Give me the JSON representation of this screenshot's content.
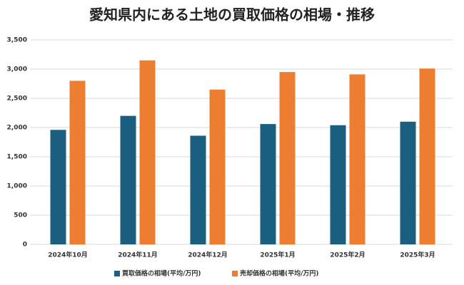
{
  "chart_data": {
    "type": "bar",
    "title": "愛知県内にある土地の買取価格の相場・推移",
    "categories": [
      "2024年10月",
      "2024年11月",
      "2024年12月",
      "2025年1月",
      "2025年2月",
      "2025年3月"
    ],
    "series": [
      {
        "name": "買取価格の相場(平均/万円)",
        "color": "#1b5f80",
        "values": [
          1960,
          2200,
          1860,
          2060,
          2040,
          2100
        ]
      },
      {
        "name": "売却価格の相場(平均/万円)",
        "color": "#ed7d31",
        "values": [
          2800,
          3150,
          2650,
          2950,
          2910,
          3010
        ]
      }
    ],
    "ylim": [
      0,
      3500
    ],
    "yticks": [
      0,
      500,
      {
        "value": 1000,
        "label": "1,000"
      },
      {
        "value": 1500,
        "label": "1,500"
      },
      {
        "value": 2000,
        "label": "2,000"
      },
      {
        "value": 2500,
        "label": "2,500"
      },
      {
        "value": 3000,
        "label": "3,000"
      },
      {
        "value": 3500,
        "label": "3,500"
      }
    ],
    "grid": true,
    "legend": "bottom"
  }
}
